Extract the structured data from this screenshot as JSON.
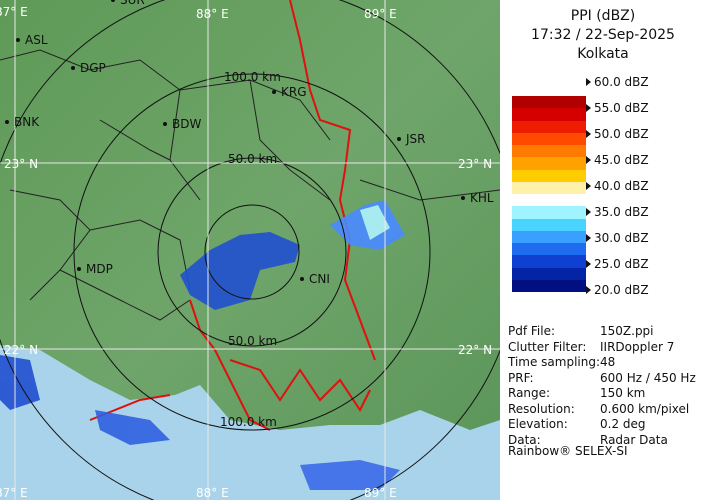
{
  "title": "PPI (dBZ)",
  "time": "17:32 / 22-Sep-2025",
  "site": "Kolkata",
  "scale_labels": [
    "60.0 dBZ",
    "55.0 dBZ",
    "50.0 dBZ",
    "45.0 dBZ",
    "40.0 dBZ",
    "35.0 dBZ",
    "30.0 dBZ",
    "25.0 dBZ",
    "20.0 dBZ"
  ],
  "scale_colors": [
    "#b00000",
    "#d40000",
    "#ee1c00",
    "#ff4a00",
    "#ff7a00",
    "#ffa200",
    "#ffcc00",
    "#fff1a8",
    "#ffffff",
    "#9ff4ff",
    "#48d4ff",
    "#3aa0ff",
    "#1f6cf0",
    "#1040d0",
    "#0424a8",
    "#001080"
  ],
  "map_labels": {
    "lon": [
      "87° E",
      "88° E",
      "89° E"
    ],
    "lon_bottom": [
      "87° E",
      "88° E",
      "89° E"
    ],
    "lat": [
      "23° N",
      "22° N"
    ],
    "lat_right": [
      "23° N",
      "22° N"
    ],
    "cities": [
      "SUR",
      "ASL",
      "DGP",
      "BNK",
      "BDW",
      "KRG",
      "JSR",
      "KHL",
      "MDP",
      "CNI"
    ],
    "rings": [
      "100.0 km",
      "50.0 km",
      "50.0 km",
      "100.0 km"
    ]
  },
  "info": [
    [
      "Pdf File:",
      "150Z.ppi"
    ],
    [
      "Clutter Filter:",
      "IIRDoppler 7"
    ],
    [
      "Time sampling:48",
      ""
    ],
    [
      "PRF:",
      "600 Hz / 450 Hz"
    ],
    [
      "Range:",
      "150 km"
    ],
    [
      "Resolution:",
      "0.600 km/pixel"
    ],
    [
      "Elevation:",
      "0.2 deg"
    ],
    [
      "Data:",
      "Radar Data"
    ]
  ],
  "footer": "Rainbow® SELEX-SI"
}
